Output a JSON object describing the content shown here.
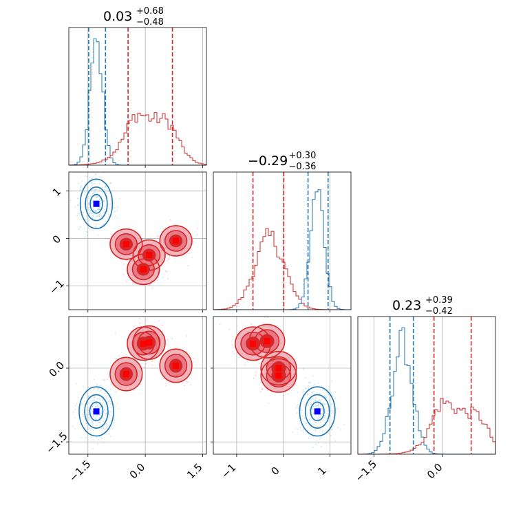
{
  "chart_data": {
    "type": "corner",
    "description_colors": {
      "blue": "#1f77b4",
      "red": "#d62728",
      "marker_blue": "#0000ff",
      "marker_red": "#ff0000"
    },
    "panels": [
      {
        "id": "hist_0",
        "type": "histogram",
        "row": 0,
        "col": 0,
        "title": {
          "value": "0.03",
          "plus": "+0.68",
          "minus": "−0.48"
        },
        "xlim": [
          -2.0,
          1.6
        ],
        "series": [
          {
            "name": "",
            "color": "#1f77b4",
            "center": -1.28,
            "sigma": 0.17,
            "peak": 0.9,
            "quantiles": [
              -1.48,
              -1.04
            ]
          },
          {
            "name": "",
            "color": "#d62728",
            "center": 0.03,
            "sigma": 0.55,
            "peak": 0.42,
            "quantiles": [
              -0.45,
              0.71
            ]
          }
        ]
      },
      {
        "id": "hist_1",
        "type": "histogram",
        "row": 1,
        "col": 1,
        "title": {
          "value": "−0.29",
          "plus": "+0.30",
          "minus": "−0.36"
        },
        "xlim": [
          -1.5,
          1.45
        ],
        "series": [
          {
            "name": "",
            "color": "#d62728",
            "center": -0.29,
            "sigma": 0.32,
            "peak": 0.55,
            "quantiles": [
              -0.65,
              0.01
            ]
          },
          {
            "name": "",
            "color": "#1f77b4",
            "center": 0.73,
            "sigma": 0.15,
            "peak": 0.9,
            "quantiles": [
              0.53,
              0.96
            ]
          }
        ]
      },
      {
        "id": "hist_2",
        "type": "histogram",
        "row": 2,
        "col": 2,
        "title": {
          "value": "0.23",
          "plus": "+0.39",
          "minus": "−0.42"
        },
        "xlim": [
          -1.85,
          1.15
        ],
        "series": [
          {
            "name": "",
            "color": "#1f77b4",
            "center": -0.88,
            "sigma": 0.22,
            "peak": 0.85,
            "quantiles": [
              -1.15,
              -0.64
            ]
          },
          {
            "name": "",
            "color": "#d62728",
            "center": 0.23,
            "sigma": 0.42,
            "peak": 0.45,
            "quantiles": [
              -0.19,
              0.62
            ]
          }
        ]
      },
      {
        "id": "scatter_10",
        "type": "contour",
        "row": 1,
        "col": 0,
        "xlim": [
          -2.0,
          1.6
        ],
        "ylim": [
          -1.5,
          1.4
        ],
        "yticks": [
          1,
          0,
          -1
        ],
        "ytick_labels": [
          "1",
          "0",
          "−1"
        ],
        "clusters": [
          {
            "color": "#1f77b4",
            "marker": "#0000ff",
            "centers": [
              [
                -1.28,
                0.73
              ]
            ],
            "rx": 0.42,
            "ry": 0.52
          },
          {
            "color": "#d62728",
            "marker": "#ff0000",
            "centers": [
              [
                -0.5,
                -0.12
              ],
              [
                0.1,
                -0.35
              ],
              [
                -0.05,
                -0.65
              ],
              [
                0.8,
                -0.05
              ]
            ],
            "rx": 0.42,
            "ry": 0.32
          }
        ]
      },
      {
        "id": "scatter_20",
        "type": "contour",
        "row": 2,
        "col": 0,
        "xlim": [
          -2.0,
          1.6
        ],
        "ylim": [
          -1.75,
          1.05
        ],
        "yticks": [
          0.0,
          -1.5
        ],
        "ytick_labels": [
          "0.0",
          "−1.5"
        ],
        "xticks": [
          -1.5,
          0.0,
          1.5
        ],
        "xtick_labels": [
          "−1.5",
          "0.0",
          "1.5"
        ],
        "clusters": [
          {
            "color": "#1f77b4",
            "marker": "#0000ff",
            "centers": [
              [
                -1.28,
                -0.88
              ]
            ],
            "rx": 0.45,
            "ry": 0.5
          },
          {
            "color": "#d62728",
            "marker": "#ff0000",
            "centers": [
              [
                -0.5,
                -0.12
              ],
              [
                -0.05,
                0.5
              ],
              [
                0.1,
                0.52
              ],
              [
                0.8,
                0.05
              ]
            ],
            "rx": 0.42,
            "ry": 0.34
          }
        ]
      },
      {
        "id": "scatter_21",
        "type": "contour",
        "row": 2,
        "col": 1,
        "xlim": [
          -1.5,
          1.45
        ],
        "ylim": [
          -1.75,
          1.05
        ],
        "xticks": [
          -1,
          0,
          1
        ],
        "xtick_labels": [
          "−1",
          "0",
          "1"
        ],
        "clusters": [
          {
            "color": "#1f77b4",
            "marker": "#0000ff",
            "centers": [
              [
                0.73,
                -0.88
              ]
            ],
            "rx": 0.38,
            "ry": 0.5
          },
          {
            "color": "#d62728",
            "marker": "#ff0000",
            "centers": [
              [
                -0.65,
                0.5
              ],
              [
                -0.35,
                0.55
              ],
              [
                -0.1,
                -0.15
              ],
              [
                -0.1,
                0.0
              ]
            ],
            "rx": 0.38,
            "ry": 0.34
          }
        ]
      }
    ],
    "hist2_xticks": [
      -1.5,
      0.0
    ],
    "hist2_xtick_labels": [
      "−1.5",
      "0.0"
    ],
    "hist1_xticks": [
      -1,
      0,
      1
    ]
  }
}
